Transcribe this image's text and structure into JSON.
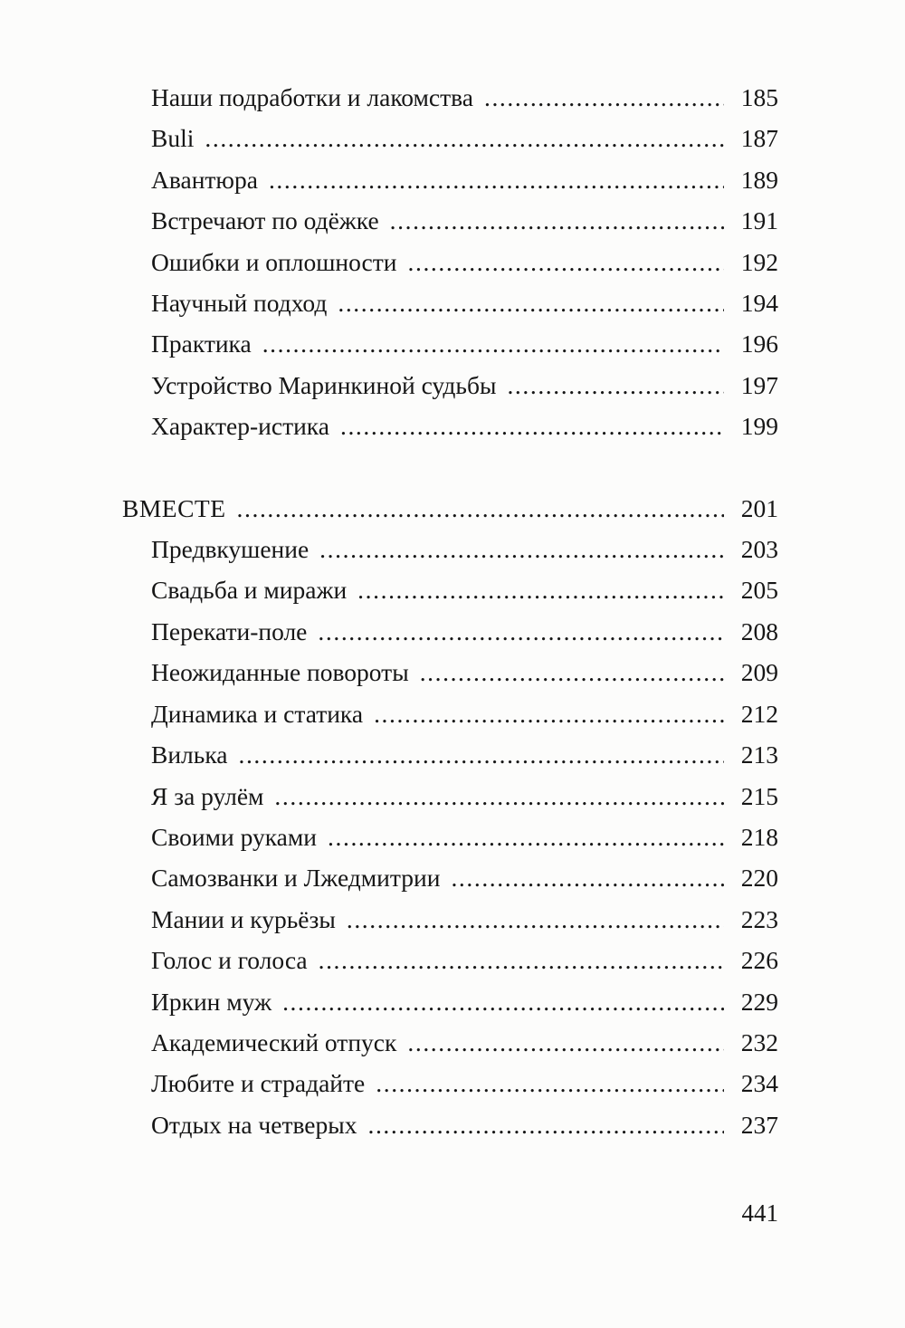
{
  "page": {
    "number": "441"
  },
  "toc": {
    "sections": [
      {
        "heading": null,
        "entries": [
          {
            "title": "Наши подработки и лакомства",
            "page": "185"
          },
          {
            "title": "Buli",
            "page": "187"
          },
          {
            "title": "Авантюра",
            "page": "189"
          },
          {
            "title": "Встречают по одёжке",
            "page": "191"
          },
          {
            "title": "Ошибки и оплошности",
            "page": "192"
          },
          {
            "title": "Научный подход",
            "page": "194"
          },
          {
            "title": "Практика",
            "page": "196"
          },
          {
            "title": "Устройство Маринкиной судьбы",
            "page": "197"
          },
          {
            "title": "Характер-истика",
            "page": "199"
          }
        ]
      },
      {
        "heading": {
          "title": "ВМЕСТЕ",
          "page": "201"
        },
        "entries": [
          {
            "title": "Предвкушение",
            "page": "203"
          },
          {
            "title": "Свадьба и миражи",
            "page": "205"
          },
          {
            "title": "Перекати-поле",
            "page": "208"
          },
          {
            "title": "Неожиданные повороты",
            "page": "209"
          },
          {
            "title": "Динамика и статика",
            "page": "212"
          },
          {
            "title": "Вилька",
            "page": "213"
          },
          {
            "title": "Я за рулём",
            "page": "215"
          },
          {
            "title": "Своими руками",
            "page": "218"
          },
          {
            "title": "Самозванки и Лжедмитрии",
            "page": "220"
          },
          {
            "title": "Мании и курьёзы",
            "page": "223"
          },
          {
            "title": "Голос и голоса",
            "page": "226"
          },
          {
            "title": "Иркин муж",
            "page": "229"
          },
          {
            "title": "Академический отпуск",
            "page": "232"
          },
          {
            "title": "Любите и страдайте",
            "page": "234"
          },
          {
            "title": "Отдых на четверых",
            "page": "237"
          }
        ]
      }
    ]
  }
}
